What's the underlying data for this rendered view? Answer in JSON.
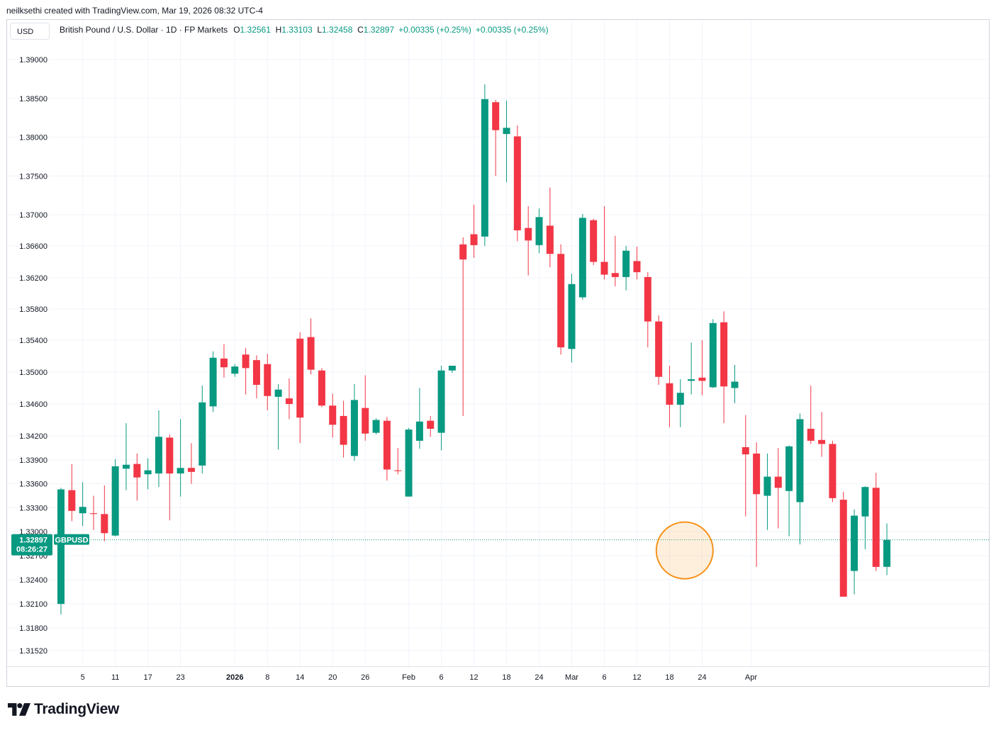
{
  "creator_text": "neilksethi created with TradingView.com, Mar 19, 2026 08:32 UTC-4",
  "currency_button": "USD",
  "legend": {
    "symbol_title": "British Pound / U.S. Dollar · 1D · FP Markets",
    "open_label": "O",
    "open": "1.32561",
    "high_label": "H",
    "high": "1.33103",
    "low_label": "L",
    "low": "1.32458",
    "close_label": "C",
    "close": "1.32897",
    "change": "+0.00335 (+0.25%)",
    "change2": "+0.00335 (+0.25%)"
  },
  "price_tag": {
    "price": "1.32897",
    "countdown": "08:26:27",
    "symbol": "GBPUSD"
  },
  "logo_text": "TradingView",
  "colors": {
    "up": "#089981",
    "down": "#f23645",
    "grid": "#f0f3fa",
    "highlight": "#f7931a"
  },
  "chart_data": {
    "type": "candlestick",
    "interval": "1D",
    "y_ticks": [
      "1.39000",
      "1.38500",
      "1.38000",
      "1.37500",
      "1.37000",
      "1.36600",
      "1.36200",
      "1.35800",
      "1.35400",
      "1.35000",
      "1.34600",
      "1.34200",
      "1.33900",
      "1.33600",
      "1.33300",
      "1.33000",
      "1.32700",
      "1.32400",
      "1.32100",
      "1.31800",
      "1.31520"
    ],
    "x_ticks": [
      {
        "label": "5",
        "i": 2
      },
      {
        "label": "11",
        "i": 5
      },
      {
        "label": "17",
        "i": 8
      },
      {
        "label": "23",
        "i": 11
      },
      {
        "label": "2026",
        "i": 16,
        "bold": true
      },
      {
        "label": "8",
        "i": 19
      },
      {
        "label": "14",
        "i": 22
      },
      {
        "label": "20",
        "i": 25
      },
      {
        "label": "26",
        "i": 28
      },
      {
        "label": "Feb",
        "i": 32
      },
      {
        "label": "6",
        "i": 35
      },
      {
        "label": "12",
        "i": 38
      },
      {
        "label": "18",
        "i": 41
      },
      {
        "label": "24",
        "i": 44
      },
      {
        "label": "Mar",
        "i": 47
      },
      {
        "label": "6",
        "i": 50
      },
      {
        "label": "12",
        "i": 53
      },
      {
        "label": "18",
        "i": 56
      },
      {
        "label": "24",
        "i": 59
      },
      {
        "label": "Apr",
        "i": 63.5
      }
    ],
    "current_price": 1.32897,
    "highlight_circle_index": 57,
    "candles": [
      {
        "o": 1.321,
        "h": 1.3355,
        "l": 1.3197,
        "c": 1.3353
      },
      {
        "o": 1.3352,
        "h": 1.3385,
        "l": 1.3313,
        "c": 1.3326
      },
      {
        "o": 1.3323,
        "h": 1.3362,
        "l": 1.3307,
        "c": 1.3331
      },
      {
        "o": 1.3323,
        "h": 1.3345,
        "l": 1.3302,
        "c": 1.3322
      },
      {
        "o": 1.3322,
        "h": 1.3358,
        "l": 1.3288,
        "c": 1.3298
      },
      {
        "o": 1.3295,
        "h": 1.3391,
        "l": 1.3294,
        "c": 1.3382
      },
      {
        "o": 1.3379,
        "h": 1.3436,
        "l": 1.3352,
        "c": 1.3384
      },
      {
        "o": 1.3385,
        "h": 1.3398,
        "l": 1.3339,
        "c": 1.3368
      },
      {
        "o": 1.3372,
        "h": 1.3392,
        "l": 1.3353,
        "c": 1.3377
      },
      {
        "o": 1.3373,
        "h": 1.3452,
        "l": 1.3356,
        "c": 1.3419
      },
      {
        "o": 1.3418,
        "h": 1.3422,
        "l": 1.3314,
        "c": 1.3373
      },
      {
        "o": 1.3373,
        "h": 1.3441,
        "l": 1.3344,
        "c": 1.338
      },
      {
        "o": 1.338,
        "h": 1.3411,
        "l": 1.336,
        "c": 1.3375
      },
      {
        "o": 1.3383,
        "h": 1.3483,
        "l": 1.3373,
        "c": 1.3462
      },
      {
        "o": 1.3457,
        "h": 1.3526,
        "l": 1.345,
        "c": 1.3518
      },
      {
        "o": 1.3517,
        "h": 1.3535,
        "l": 1.3493,
        "c": 1.3506
      },
      {
        "o": 1.3498,
        "h": 1.351,
        "l": 1.3494,
        "c": 1.3507
      },
      {
        "o": 1.3522,
        "h": 1.353,
        "l": 1.3472,
        "c": 1.3505
      },
      {
        "o": 1.3515,
        "h": 1.3521,
        "l": 1.3467,
        "c": 1.3484
      },
      {
        "o": 1.351,
        "h": 1.3523,
        "l": 1.3452,
        "c": 1.347
      },
      {
        "o": 1.3469,
        "h": 1.3485,
        "l": 1.3403,
        "c": 1.3478
      },
      {
        "o": 1.3467,
        "h": 1.3492,
        "l": 1.3441,
        "c": 1.346
      },
      {
        "o": 1.3542,
        "h": 1.355,
        "l": 1.3411,
        "c": 1.3443
      },
      {
        "o": 1.3544,
        "h": 1.3568,
        "l": 1.3497,
        "c": 1.3503
      },
      {
        "o": 1.3502,
        "h": 1.3505,
        "l": 1.3456,
        "c": 1.3458
      },
      {
        "o": 1.3458,
        "h": 1.3473,
        "l": 1.3418,
        "c": 1.3434
      },
      {
        "o": 1.3445,
        "h": 1.3464,
        "l": 1.3393,
        "c": 1.3409
      },
      {
        "o": 1.3395,
        "h": 1.3485,
        "l": 1.3389,
        "c": 1.3465
      },
      {
        "o": 1.3455,
        "h": 1.3496,
        "l": 1.3414,
        "c": 1.3423
      },
      {
        "o": 1.3424,
        "h": 1.3442,
        "l": 1.3422,
        "c": 1.344
      },
      {
        "o": 1.3439,
        "h": 1.3444,
        "l": 1.3364,
        "c": 1.3378
      },
      {
        "o": 1.3377,
        "h": 1.3405,
        "l": 1.3372,
        "c": 1.3376
      },
      {
        "o": 1.3344,
        "h": 1.343,
        "l": 1.3344,
        "c": 1.3428
      },
      {
        "o": 1.3414,
        "h": 1.348,
        "l": 1.3404,
        "c": 1.3438
      },
      {
        "o": 1.3439,
        "h": 1.3445,
        "l": 1.3419,
        "c": 1.3429
      },
      {
        "o": 1.3424,
        "h": 1.3508,
        "l": 1.3402,
        "c": 1.3502
      },
      {
        "o": 1.3502,
        "h": 1.3508,
        "l": 1.3499,
        "c": 1.3508
      },
      {
        "o": 1.3662,
        "h": 1.3671,
        "l": 1.3445,
        "c": 1.3643
      },
      {
        "o": 1.3675,
        "h": 1.3713,
        "l": 1.3645,
        "c": 1.3661
      },
      {
        "o": 1.3672,
        "h": 1.3868,
        "l": 1.366,
        "c": 1.3849
      },
      {
        "o": 1.3845,
        "h": 1.3848,
        "l": 1.375,
        "c": 1.3809
      },
      {
        "o": 1.3804,
        "h": 1.3847,
        "l": 1.3742,
        "c": 1.3812
      },
      {
        "o": 1.3801,
        "h": 1.3815,
        "l": 1.3666,
        "c": 1.368
      },
      {
        "o": 1.3683,
        "h": 1.3711,
        "l": 1.3623,
        "c": 1.3667
      },
      {
        "o": 1.3661,
        "h": 1.3708,
        "l": 1.3651,
        "c": 1.3697
      },
      {
        "o": 1.3686,
        "h": 1.3735,
        "l": 1.3633,
        "c": 1.365
      },
      {
        "o": 1.365,
        "h": 1.3662,
        "l": 1.3522,
        "c": 1.3531
      },
      {
        "o": 1.3529,
        "h": 1.3625,
        "l": 1.3512,
        "c": 1.3612
      },
      {
        "o": 1.3595,
        "h": 1.3701,
        "l": 1.3592,
        "c": 1.3696
      },
      {
        "o": 1.3693,
        "h": 1.3695,
        "l": 1.3636,
        "c": 1.364
      },
      {
        "o": 1.364,
        "h": 1.3711,
        "l": 1.3618,
        "c": 1.3624
      },
      {
        "o": 1.3626,
        "h": 1.3673,
        "l": 1.3609,
        "c": 1.3621
      },
      {
        "o": 1.3621,
        "h": 1.366,
        "l": 1.3604,
        "c": 1.3654
      },
      {
        "o": 1.3641,
        "h": 1.3659,
        "l": 1.3618,
        "c": 1.3627
      },
      {
        "o": 1.3621,
        "h": 1.3627,
        "l": 1.3531,
        "c": 1.3564
      },
      {
        "o": 1.3564,
        "h": 1.3572,
        "l": 1.3484,
        "c": 1.3494
      },
      {
        "o": 1.3486,
        "h": 1.3508,
        "l": 1.3431,
        "c": 1.3459
      },
      {
        "o": 1.3459,
        "h": 1.3491,
        "l": 1.3431,
        "c": 1.3474
      },
      {
        "o": 1.3489,
        "h": 1.3537,
        "l": 1.3472,
        "c": 1.3491
      },
      {
        "o": 1.3493,
        "h": 1.354,
        "l": 1.3471,
        "c": 1.3489
      },
      {
        "o": 1.3481,
        "h": 1.3567,
        "l": 1.348,
        "c": 1.3562
      },
      {
        "o": 1.3563,
        "h": 1.3577,
        "l": 1.3436,
        "c": 1.3482
      },
      {
        "o": 1.348,
        "h": 1.3509,
        "l": 1.3461,
        "c": 1.3488
      },
      {
        "o": 1.3406,
        "h": 1.3446,
        "l": 1.3319,
        "c": 1.3397
      },
      {
        "o": 1.3398,
        "h": 1.3412,
        "l": 1.3256,
        "c": 1.3347
      },
      {
        "o": 1.3345,
        "h": 1.3398,
        "l": 1.3302,
        "c": 1.3369
      },
      {
        "o": 1.3369,
        "h": 1.3405,
        "l": 1.3304,
        "c": 1.3355
      },
      {
        "o": 1.3351,
        "h": 1.3408,
        "l": 1.3294,
        "c": 1.3407
      },
      {
        "o": 1.3337,
        "h": 1.3448,
        "l": 1.3284,
        "c": 1.3441
      },
      {
        "o": 1.3429,
        "h": 1.3483,
        "l": 1.341,
        "c": 1.3414
      },
      {
        "o": 1.3415,
        "h": 1.345,
        "l": 1.3394,
        "c": 1.341
      },
      {
        "o": 1.341,
        "h": 1.3414,
        "l": 1.3337,
        "c": 1.3342
      },
      {
        "o": 1.334,
        "h": 1.335,
        "l": 1.3219,
        "c": 1.3219
      },
      {
        "o": 1.3251,
        "h": 1.3328,
        "l": 1.3222,
        "c": 1.332
      },
      {
        "o": 1.3319,
        "h": 1.3357,
        "l": 1.3278,
        "c": 1.3356
      },
      {
        "o": 1.3355,
        "h": 1.3374,
        "l": 1.3251,
        "c": 1.3256
      },
      {
        "o": 1.32561,
        "h": 1.33103,
        "l": 1.32458,
        "c": 1.32897
      }
    ]
  }
}
